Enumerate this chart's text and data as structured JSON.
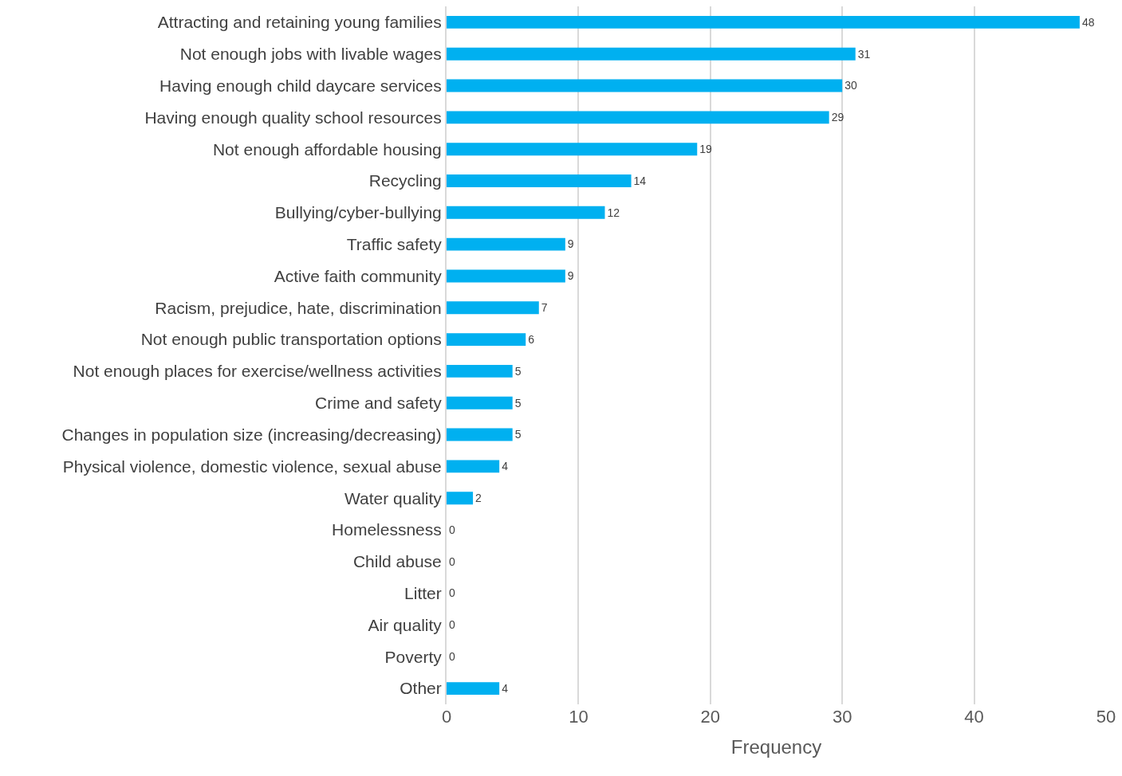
{
  "chart_data": {
    "type": "bar",
    "orientation": "horizontal",
    "categories": [
      "Attracting and retaining young families",
      "Not enough jobs with livable wages",
      "Having enough child daycare services",
      "Having enough quality school resources",
      "Not enough affordable housing",
      "Recycling",
      "Bullying/cyber-bullying",
      "Traffic safety",
      "Active faith community",
      "Racism, prejudice, hate, discrimination",
      "Not enough public transportation options",
      "Not enough places for exercise/wellness activities",
      "Crime and safety",
      "Changes in population size (increasing/decreasing)",
      "Physical violence, domestic violence, sexual abuse",
      "Water quality",
      "Homelessness",
      "Child abuse",
      "Litter",
      "Air quality",
      "Poverty",
      "Other"
    ],
    "values": [
      48,
      31,
      30,
      29,
      19,
      14,
      12,
      9,
      9,
      7,
      6,
      5,
      5,
      5,
      4,
      2,
      0,
      0,
      0,
      0,
      0,
      4
    ],
    "color": "#00b0f0",
    "xlabel": "Frequency",
    "xlim": [
      0,
      50
    ],
    "xticks": [
      0,
      10,
      20,
      30,
      40,
      50
    ],
    "grid": "x",
    "data_labels": true,
    "legend": false
  }
}
